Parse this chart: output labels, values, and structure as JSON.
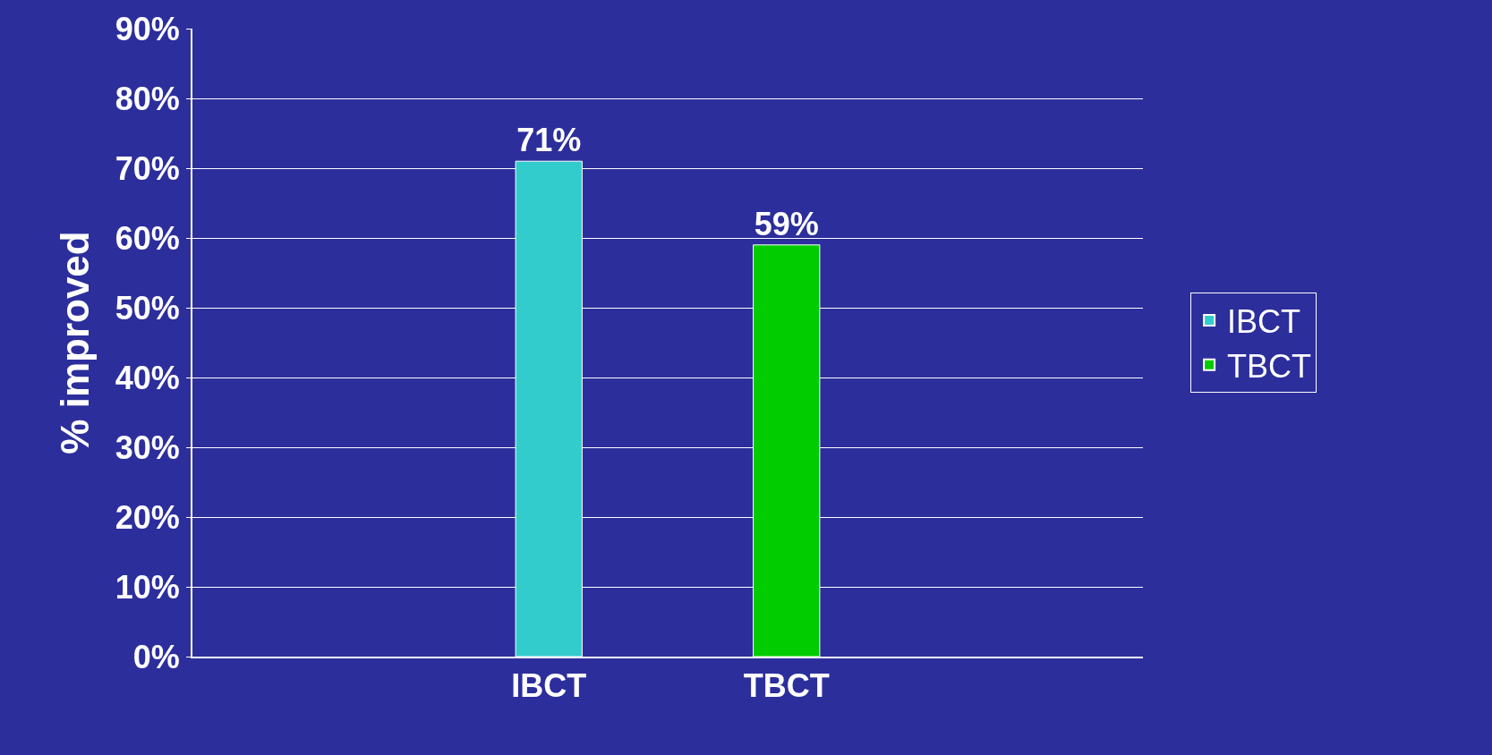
{
  "chart_data": {
    "type": "bar",
    "ylabel": "% improved",
    "categories": [
      null,
      "IBCT",
      "TBCT",
      null
    ],
    "series": [
      {
        "name": "IBCT",
        "color": "#33cccc",
        "values": [
          null,
          71,
          null,
          null
        ],
        "value_labels": [
          null,
          "71%",
          null,
          null
        ]
      },
      {
        "name": "TBCT",
        "color": "#00cc00",
        "values": [
          null,
          null,
          59,
          null
        ],
        "value_labels": [
          null,
          null,
          "59%",
          null
        ]
      }
    ],
    "ylim": [
      0,
      90
    ],
    "yticks": [
      {
        "value": 0,
        "label": "0%"
      },
      {
        "value": 10,
        "label": "10%"
      },
      {
        "value": 20,
        "label": "20%"
      },
      {
        "value": 30,
        "label": "30%"
      },
      {
        "value": 40,
        "label": "40%"
      },
      {
        "value": 50,
        "label": "50%"
      },
      {
        "value": 60,
        "label": "60%"
      },
      {
        "value": 70,
        "label": "70%"
      },
      {
        "value": 80,
        "label": "80%"
      },
      {
        "value": 90,
        "label": "90%"
      }
    ],
    "grid": "y",
    "legend": "right"
  }
}
